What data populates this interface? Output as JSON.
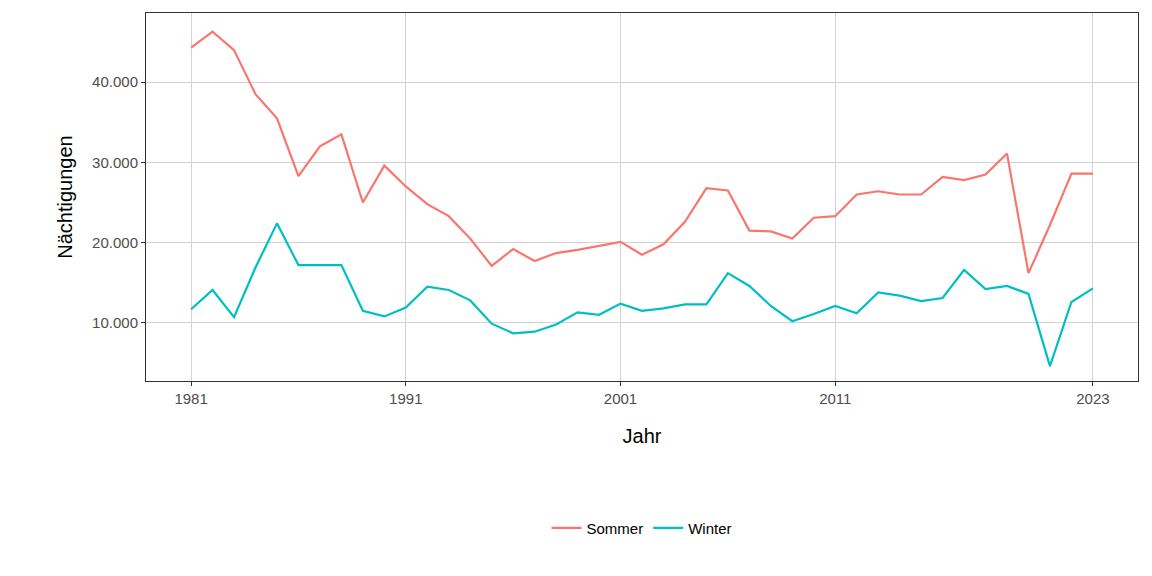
{
  "chart_data": {
    "type": "line",
    "x_label": "Jahr",
    "y_label": "Nächtigungen",
    "x": [
      1981,
      1982,
      1983,
      1984,
      1985,
      1986,
      1987,
      1988,
      1989,
      1990,
      1991,
      1992,
      1993,
      1994,
      1995,
      1996,
      1997,
      1998,
      1999,
      2000,
      2001,
      2002,
      2003,
      2004,
      2005,
      2006,
      2007,
      2008,
      2009,
      2010,
      2011,
      2012,
      2013,
      2014,
      2015,
      2016,
      2017,
      2018,
      2019,
      2020,
      2021,
      2022,
      2023
    ],
    "series": [
      {
        "name": "Sommer",
        "color": "#F8766D",
        "values": [
          44300,
          46300,
          44000,
          38500,
          35500,
          28300,
          32000,
          33500,
          25000,
          29600,
          27000,
          24800,
          23300,
          20500,
          17100,
          19200,
          17700,
          18700,
          19100,
          19600,
          20100,
          18500,
          19800,
          22600,
          26800,
          26500,
          21500,
          21400,
          20500,
          23100,
          23300,
          26000,
          26400,
          26000,
          26000,
          28200,
          27800,
          28500,
          31100,
          16200,
          22200,
          28600,
          28600
        ]
      },
      {
        "name": "Winter",
        "color": "#00BFC4",
        "values": [
          11700,
          14100,
          10700,
          16900,
          22400,
          17200,
          17200,
          17200,
          11500,
          10800,
          11900,
          14500,
          14100,
          12800,
          9900,
          8700,
          8900,
          9800,
          11300,
          11000,
          12400,
          11500,
          11800,
          12300,
          12300,
          16200,
          14600,
          12100,
          10200,
          11100,
          12100,
          11200,
          13800,
          13400,
          12700,
          13100,
          16600,
          14200,
          14600,
          13600,
          4600,
          12600,
          14300
        ]
      }
    ],
    "xlim": [
      1978.9,
      2025.1
    ],
    "xticks": [
      1981,
      1991,
      2001,
      2011,
      2023
    ],
    "ylim": [
      2750,
      48625
    ],
    "yticks": [
      {
        "value": 10000,
        "label": "10.000"
      },
      {
        "value": 20000,
        "label": "20.000"
      },
      {
        "value": 30000,
        "label": "30.000"
      },
      {
        "value": 40000,
        "label": "40.000"
      }
    ],
    "grid": true,
    "legend": "bottom"
  }
}
